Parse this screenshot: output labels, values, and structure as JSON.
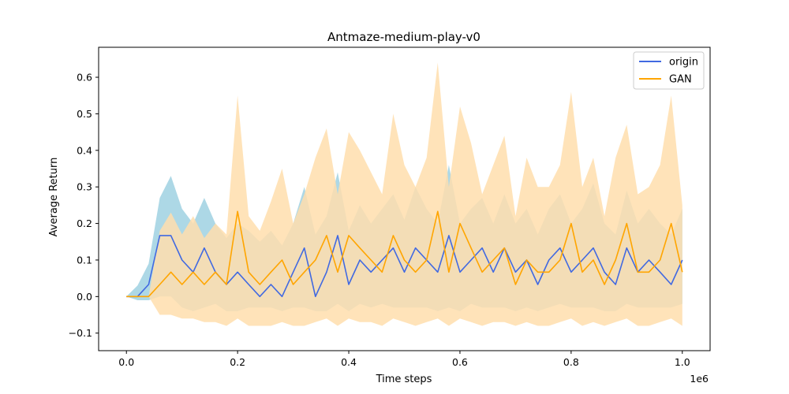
{
  "chart_data": {
    "type": "line",
    "title": "Antmaze-medium-play-v0",
    "xlabel": "Time steps",
    "ylabel": "Average Return",
    "x_offset_text": "1e6",
    "xlim": [
      -0.05,
      1.05
    ],
    "ylim": [
      -0.148,
      0.682
    ],
    "x_ticks": [
      0.0,
      0.2,
      0.4,
      0.6,
      0.8,
      1.0
    ],
    "x_tick_labels": [
      "0.0",
      "0.2",
      "0.4",
      "0.6",
      "0.8",
      "1.0"
    ],
    "y_ticks": [
      -0.1,
      0.0,
      0.1,
      0.2,
      0.3,
      0.4,
      0.5,
      0.6
    ],
    "y_tick_labels": [
      "−0.1",
      "0.0",
      "0.1",
      "0.2",
      "0.3",
      "0.4",
      "0.5",
      "0.6"
    ],
    "grid": false,
    "legend_position": "top-right",
    "x": [
      0.0,
      0.02,
      0.04,
      0.06,
      0.08,
      0.1,
      0.12,
      0.14,
      0.16,
      0.18,
      0.2,
      0.22,
      0.24,
      0.26,
      0.28,
      0.3,
      0.32,
      0.34,
      0.36,
      0.38,
      0.4,
      0.42,
      0.44,
      0.46,
      0.48,
      0.5,
      0.52,
      0.54,
      0.56,
      0.58,
      0.6,
      0.62,
      0.64,
      0.66,
      0.68,
      0.7,
      0.72,
      0.74,
      0.76,
      0.78,
      0.8,
      0.82,
      0.84,
      0.86,
      0.88,
      0.9,
      0.92,
      0.94,
      0.96,
      0.98,
      1.0
    ],
    "series": [
      {
        "name": "origin",
        "color": "#4169e1",
        "band_color": "#add8e6",
        "values": [
          0.0,
          0.0,
          0.033,
          0.167,
          0.167,
          0.1,
          0.067,
          0.133,
          0.067,
          0.033,
          0.067,
          0.033,
          0.0,
          0.033,
          0.0,
          0.067,
          0.133,
          0.0,
          0.067,
          0.167,
          0.033,
          0.1,
          0.067,
          0.1,
          0.133,
          0.067,
          0.133,
          0.1,
          0.067,
          0.167,
          0.067,
          0.1,
          0.133,
          0.067,
          0.133,
          0.067,
          0.1,
          0.033,
          0.1,
          0.133,
          0.067,
          0.1,
          0.133,
          0.067,
          0.033,
          0.133,
          0.067,
          0.1,
          0.067,
          0.033,
          0.1
        ],
        "lower": [
          0.0,
          -0.01,
          -0.01,
          0.0,
          0.0,
          -0.03,
          -0.04,
          -0.03,
          -0.02,
          -0.04,
          -0.04,
          -0.03,
          -0.03,
          -0.03,
          -0.04,
          -0.03,
          -0.03,
          -0.04,
          -0.04,
          -0.02,
          -0.04,
          -0.02,
          -0.03,
          -0.02,
          -0.03,
          -0.03,
          -0.03,
          -0.03,
          -0.04,
          -0.03,
          -0.04,
          -0.02,
          -0.03,
          -0.03,
          -0.03,
          -0.04,
          -0.03,
          -0.04,
          -0.03,
          -0.02,
          -0.03,
          -0.03,
          -0.03,
          -0.04,
          -0.04,
          -0.02,
          -0.03,
          -0.03,
          -0.03,
          -0.03,
          -0.02
        ],
        "upper": [
          0.0,
          0.03,
          0.09,
          0.27,
          0.33,
          0.24,
          0.2,
          0.27,
          0.2,
          0.16,
          0.2,
          0.18,
          0.15,
          0.18,
          0.14,
          0.2,
          0.3,
          0.17,
          0.22,
          0.34,
          0.18,
          0.25,
          0.2,
          0.24,
          0.28,
          0.21,
          0.3,
          0.24,
          0.2,
          0.36,
          0.2,
          0.24,
          0.27,
          0.2,
          0.28,
          0.2,
          0.24,
          0.17,
          0.24,
          0.28,
          0.2,
          0.24,
          0.31,
          0.2,
          0.17,
          0.29,
          0.2,
          0.24,
          0.2,
          0.17,
          0.24
        ]
      },
      {
        "name": "GAN",
        "color": "#ffa500",
        "band_color": "#ffdead",
        "values": [
          0.0,
          0.0,
          0.0,
          0.033,
          0.067,
          0.033,
          0.067,
          0.033,
          0.067,
          0.033,
          0.233,
          0.067,
          0.033,
          0.067,
          0.1,
          0.033,
          0.067,
          0.1,
          0.167,
          0.067,
          0.167,
          0.133,
          0.1,
          0.067,
          0.167,
          0.1,
          0.067,
          0.1,
          0.233,
          0.067,
          0.2,
          0.133,
          0.067,
          0.1,
          0.133,
          0.033,
          0.1,
          0.067,
          0.067,
          0.1,
          0.2,
          0.067,
          0.1,
          0.033,
          0.1,
          0.2,
          0.067,
          0.067,
          0.1,
          0.2,
          0.067
        ],
        "lower": [
          0.0,
          0.0,
          0.0,
          -0.05,
          -0.05,
          -0.06,
          -0.06,
          -0.07,
          -0.07,
          -0.08,
          -0.06,
          -0.08,
          -0.08,
          -0.08,
          -0.07,
          -0.08,
          -0.08,
          -0.07,
          -0.06,
          -0.08,
          -0.06,
          -0.07,
          -0.07,
          -0.08,
          -0.06,
          -0.07,
          -0.08,
          -0.07,
          -0.06,
          -0.08,
          -0.06,
          -0.07,
          -0.08,
          -0.07,
          -0.07,
          -0.08,
          -0.07,
          -0.08,
          -0.08,
          -0.07,
          -0.06,
          -0.08,
          -0.07,
          -0.08,
          -0.07,
          -0.06,
          -0.08,
          -0.08,
          -0.07,
          -0.06,
          -0.08
        ],
        "upper": [
          0.0,
          0.0,
          0.0,
          0.18,
          0.23,
          0.17,
          0.22,
          0.16,
          0.2,
          0.17,
          0.55,
          0.22,
          0.18,
          0.26,
          0.35,
          0.2,
          0.28,
          0.38,
          0.46,
          0.28,
          0.45,
          0.4,
          0.34,
          0.28,
          0.5,
          0.36,
          0.3,
          0.38,
          0.64,
          0.3,
          0.52,
          0.42,
          0.28,
          0.36,
          0.44,
          0.22,
          0.38,
          0.3,
          0.3,
          0.36,
          0.56,
          0.3,
          0.38,
          0.22,
          0.38,
          0.47,
          0.28,
          0.3,
          0.36,
          0.55,
          0.25
        ]
      }
    ]
  }
}
